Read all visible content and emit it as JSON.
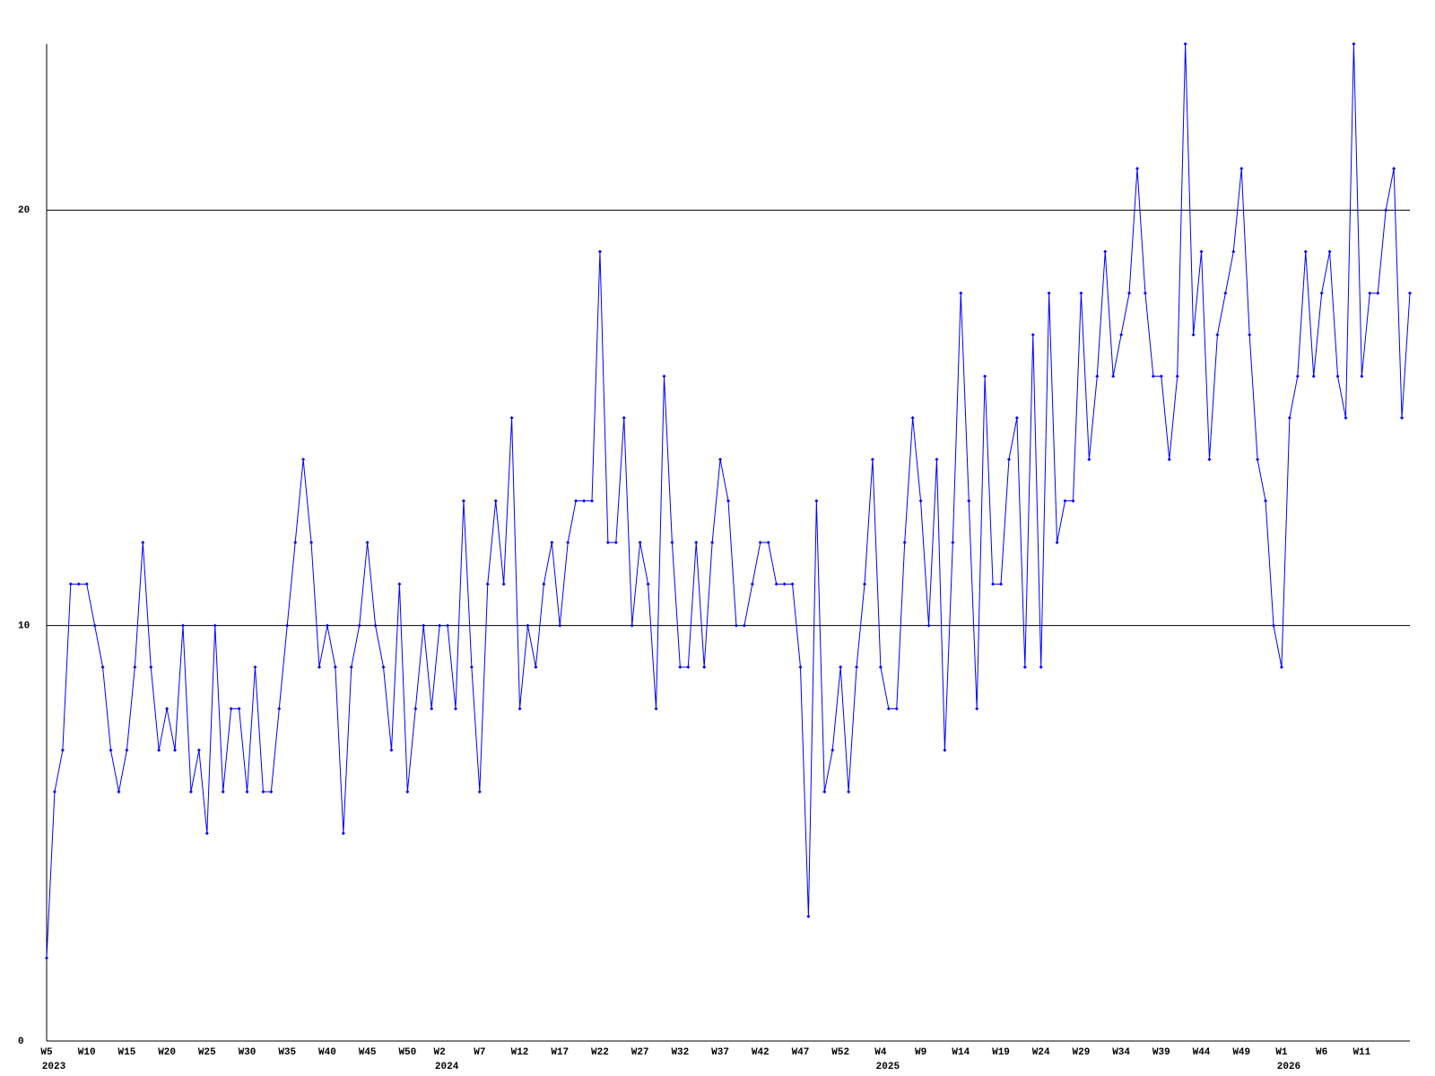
{
  "chart_data": {
    "type": "line",
    "color": "#0000ff",
    "ylim": [
      0,
      24
    ],
    "yticks": [
      0,
      10,
      20
    ],
    "grid": true,
    "categories": [
      "W5",
      null,
      null,
      null,
      null,
      "W10",
      null,
      null,
      null,
      null,
      "W15",
      null,
      null,
      null,
      null,
      "W20",
      null,
      null,
      null,
      null,
      "W25",
      null,
      null,
      null,
      null,
      "W30",
      null,
      null,
      null,
      null,
      "W35",
      null,
      null,
      null,
      null,
      "W40",
      null,
      null,
      null,
      null,
      "W45",
      null,
      null,
      null,
      null,
      "W50",
      null,
      null,
      null,
      "W2",
      null,
      null,
      null,
      null,
      "W7",
      null,
      null,
      null,
      null,
      "W12",
      null,
      null,
      null,
      null,
      "W17",
      null,
      null,
      null,
      null,
      "W22",
      null,
      null,
      null,
      null,
      "W27",
      null,
      null,
      null,
      null,
      "W32",
      null,
      null,
      null,
      null,
      "W37",
      null,
      null,
      null,
      null,
      "W42",
      null,
      null,
      null,
      null,
      "W47",
      null,
      null,
      null,
      null,
      "W52",
      null,
      null,
      null,
      null,
      "W4",
      null,
      null,
      null,
      null,
      "W9",
      null,
      null,
      null,
      null,
      "W14",
      null,
      null,
      null,
      null,
      "W19",
      null,
      null,
      null,
      null,
      "W24",
      null,
      null,
      null,
      null,
      "W29",
      null,
      null,
      null,
      null,
      "W34",
      null,
      null,
      null,
      null,
      "W39",
      null,
      null,
      null,
      null,
      "W44",
      null,
      null,
      null,
      null,
      "W49",
      null,
      null,
      null,
      null,
      "W1",
      null,
      null,
      null,
      null,
      "W6",
      null,
      null,
      null,
      null,
      "W11",
      null,
      null,
      null,
      null,
      null,
      null
    ],
    "category_years": [
      "2023",
      null,
      null,
      null,
      null,
      null,
      null,
      null,
      null,
      null,
      null,
      null,
      null,
      null,
      null,
      null,
      null,
      null,
      null,
      null,
      null,
      null,
      null,
      null,
      null,
      null,
      null,
      null,
      null,
      null,
      null,
      null,
      null,
      null,
      null,
      null,
      null,
      null,
      null,
      null,
      null,
      null,
      null,
      null,
      null,
      null,
      null,
      null,
      null,
      "2024",
      null,
      null,
      null,
      null,
      null,
      null,
      null,
      null,
      null,
      null,
      null,
      null,
      null,
      null,
      null,
      null,
      null,
      null,
      null,
      null,
      null,
      null,
      null,
      null,
      null,
      null,
      null,
      null,
      null,
      null,
      null,
      null,
      null,
      null,
      null,
      null,
      null,
      null,
      null,
      null,
      null,
      null,
      null,
      null,
      null,
      null,
      null,
      null,
      null,
      null,
      null,
      null,
      null,
      null,
      "2025",
      null,
      null,
      null,
      null,
      null,
      null,
      null,
      null,
      null,
      null,
      null,
      null,
      null,
      null,
      null,
      null,
      null,
      null,
      null,
      null,
      null,
      null,
      null,
      null,
      null,
      null,
      null,
      null,
      null,
      null,
      null,
      null,
      null,
      null,
      null,
      null,
      null,
      null,
      null,
      null,
      null,
      null,
      null,
      null,
      null,
      null,
      null,
      null,
      null,
      "2026",
      null,
      null,
      null,
      null,
      null,
      null,
      null,
      null,
      null,
      null,
      null,
      null,
      null,
      null,
      null,
      null
    ],
    "values": [
      2,
      6,
      7,
      11,
      11,
      11,
      10,
      9,
      7,
      6,
      7,
      9,
      12,
      9,
      7,
      8,
      7,
      10,
      6,
      7,
      5,
      10,
      6,
      8,
      8,
      6,
      9,
      6,
      6,
      8,
      10,
      12,
      14,
      12,
      9,
      10,
      9,
      5,
      9,
      10,
      12,
      10,
      9,
      7,
      11,
      6,
      8,
      10,
      8,
      10,
      10,
      8,
      13,
      9,
      6,
      11,
      13,
      11,
      15,
      8,
      10,
      9,
      11,
      12,
      10,
      12,
      13,
      13,
      13,
      19,
      12,
      12,
      15,
      10,
      12,
      11,
      8,
      16,
      12,
      9,
      9,
      12,
      9,
      12,
      14,
      13,
      10,
      10,
      11,
      12,
      12,
      11,
      11,
      11,
      9,
      3,
      13,
      6,
      7,
      9,
      6,
      9,
      11,
      14,
      9,
      8,
      8,
      12,
      15,
      13,
      10,
      14,
      7,
      12,
      18,
      13,
      8,
      16,
      11,
      11,
      14,
      15,
      9,
      17,
      9,
      18,
      12,
      13,
      13,
      18,
      14,
      16,
      19,
      16,
      17,
      18,
      21,
      18,
      16,
      16,
      14,
      16,
      24,
      17,
      19,
      14,
      17,
      18,
      19,
      21,
      17,
      14,
      13,
      10,
      9,
      15,
      16,
      19,
      16,
      18,
      19,
      16,
      15,
      24,
      16,
      18,
      18,
      20,
      21,
      15,
      18
    ]
  }
}
